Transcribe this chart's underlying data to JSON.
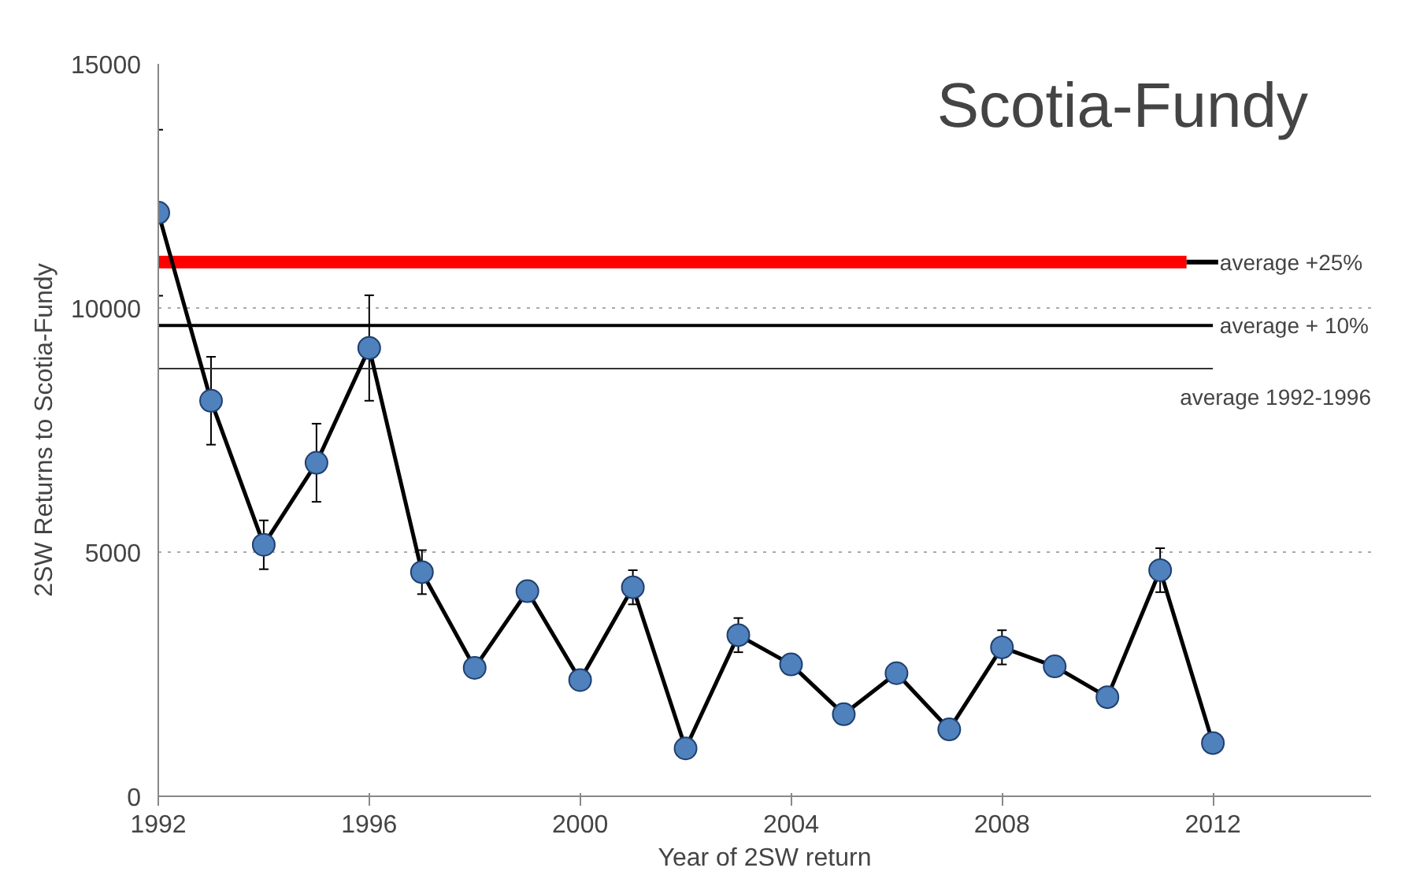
{
  "chart_data": {
    "type": "line",
    "title": "Scotia-Fundy",
    "xlabel": "Year of 2SW return",
    "ylabel": "2SW Returns to Scotia-Fundy",
    "x": [
      1992,
      1993,
      1994,
      1995,
      1996,
      1997,
      1998,
      1999,
      2000,
      2001,
      2002,
      2003,
      2004,
      2005,
      2006,
      2007,
      2008,
      2009,
      2010,
      2011,
      2012
    ],
    "series": [
      {
        "color": "#4f81bd",
        "values": [
          11950,
          8100,
          5150,
          6830,
          9180,
          4590,
          2630,
          4200,
          2380,
          4280,
          980,
          3300,
          2700,
          1680,
          2520,
          1370,
          3050,
          2660,
          2030,
          4630,
          1090
        ],
        "errors": [
          1700,
          900,
          500,
          800,
          1080,
          450,
          null,
          null,
          null,
          350,
          null,
          350,
          null,
          null,
          null,
          null,
          350,
          null,
          null,
          450,
          null
        ]
      }
    ],
    "xlim": [
      1992,
      2015
    ],
    "ylim": [
      0,
      15000
    ],
    "xticks": [
      1992,
      1996,
      2000,
      2004,
      2008,
      2012
    ],
    "yticks": [
      0,
      5000,
      10000,
      15000
    ],
    "ref_lines": [
      {
        "axis": "y",
        "value": 10940,
        "label": "average +25%",
        "color": "#ff0000"
      },
      {
        "axis": "y",
        "value": 9640,
        "label": "average + 10%",
        "color": "#000000"
      },
      {
        "axis": "y",
        "value": 8760,
        "label": "average 1992-1996",
        "color": "#333333"
      }
    ],
    "grid": "y",
    "marker": "circle",
    "line_style": "solid"
  }
}
